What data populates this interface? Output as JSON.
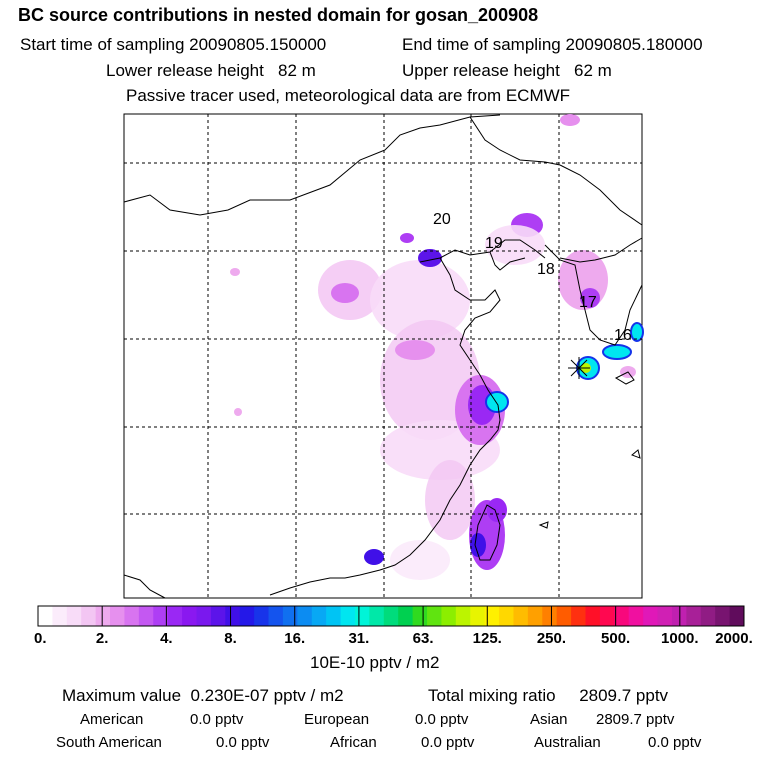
{
  "title": "BC  source contributions in nested domain for gosan_200908",
  "header": {
    "start_label": "Start time of sampling",
    "start_value": "20090805.150000",
    "end_label": "End time of sampling",
    "end_value": "20090805.180000",
    "lower_label": "Lower release height",
    "lower_value": "82 m",
    "upper_label": "Upper release height",
    "upper_value": "62 m",
    "note": "Passive tracer used, meteorological data are from ECMWF"
  },
  "chart_data": {
    "type": "heatmap",
    "title": "BC  source contributions in nested domain for gosan_200908",
    "units": "10E-10 pptv / m2",
    "grid": "dashed",
    "receptor_marker": "gosan",
    "trajectory_labels": [
      "20",
      "19",
      "18",
      "17",
      "16"
    ],
    "colorbar": {
      "tick_labels": [
        "0.",
        "2.",
        "4.",
        "8.",
        "16.",
        "31.",
        "63.",
        "125.",
        "250.",
        "500.",
        "1000.",
        "2000."
      ],
      "colors": [
        "#ffffff",
        "#fbecfb",
        "#f8dcf8",
        "#f3c6f3",
        "#eeaaee",
        "#e690ee",
        "#d874f0",
        "#c458f2",
        "#ae3ef4",
        "#9a28f4",
        "#8a18f0",
        "#7a18ee",
        "#5c14ea",
        "#4010e8",
        "#2418e8",
        "#1834ea",
        "#1454ee",
        "#1070f0",
        "#0c8cf2",
        "#08a8f4",
        "#00c4f4",
        "#00e6f0",
        "#00f4d8",
        "#00e8a8",
        "#00dc7c",
        "#00d050",
        "#30da20",
        "#60e410",
        "#8cee00",
        "#bcf400",
        "#e8f400",
        "#fff000",
        "#ffd800",
        "#ffbc00",
        "#ffa000",
        "#ff8000",
        "#ff5c00",
        "#ff3010",
        "#ff1028",
        "#ff0850",
        "#f8087c",
        "#f010a0",
        "#e018b8",
        "#d020b4",
        "#c020b0",
        "#a82098",
        "#901c84",
        "#781470",
        "#600c5c"
      ]
    }
  },
  "summary": {
    "max_label": "Maximum value",
    "max_value": "0.230E-07 pptv / m2",
    "total_label": "Total mixing ratio",
    "total_value": "2809.7 pptv",
    "regions": [
      {
        "name": "American",
        "value": "0.0 pptv"
      },
      {
        "name": "European",
        "value": "0.0 pptv"
      },
      {
        "name": "Asian",
        "value": "2809.7 pptv"
      },
      {
        "name": "South American",
        "value": "0.0 pptv"
      },
      {
        "name": "African",
        "value": "0.0 pptv"
      },
      {
        "name": "Australian",
        "value": "0.0 pptv"
      }
    ]
  }
}
